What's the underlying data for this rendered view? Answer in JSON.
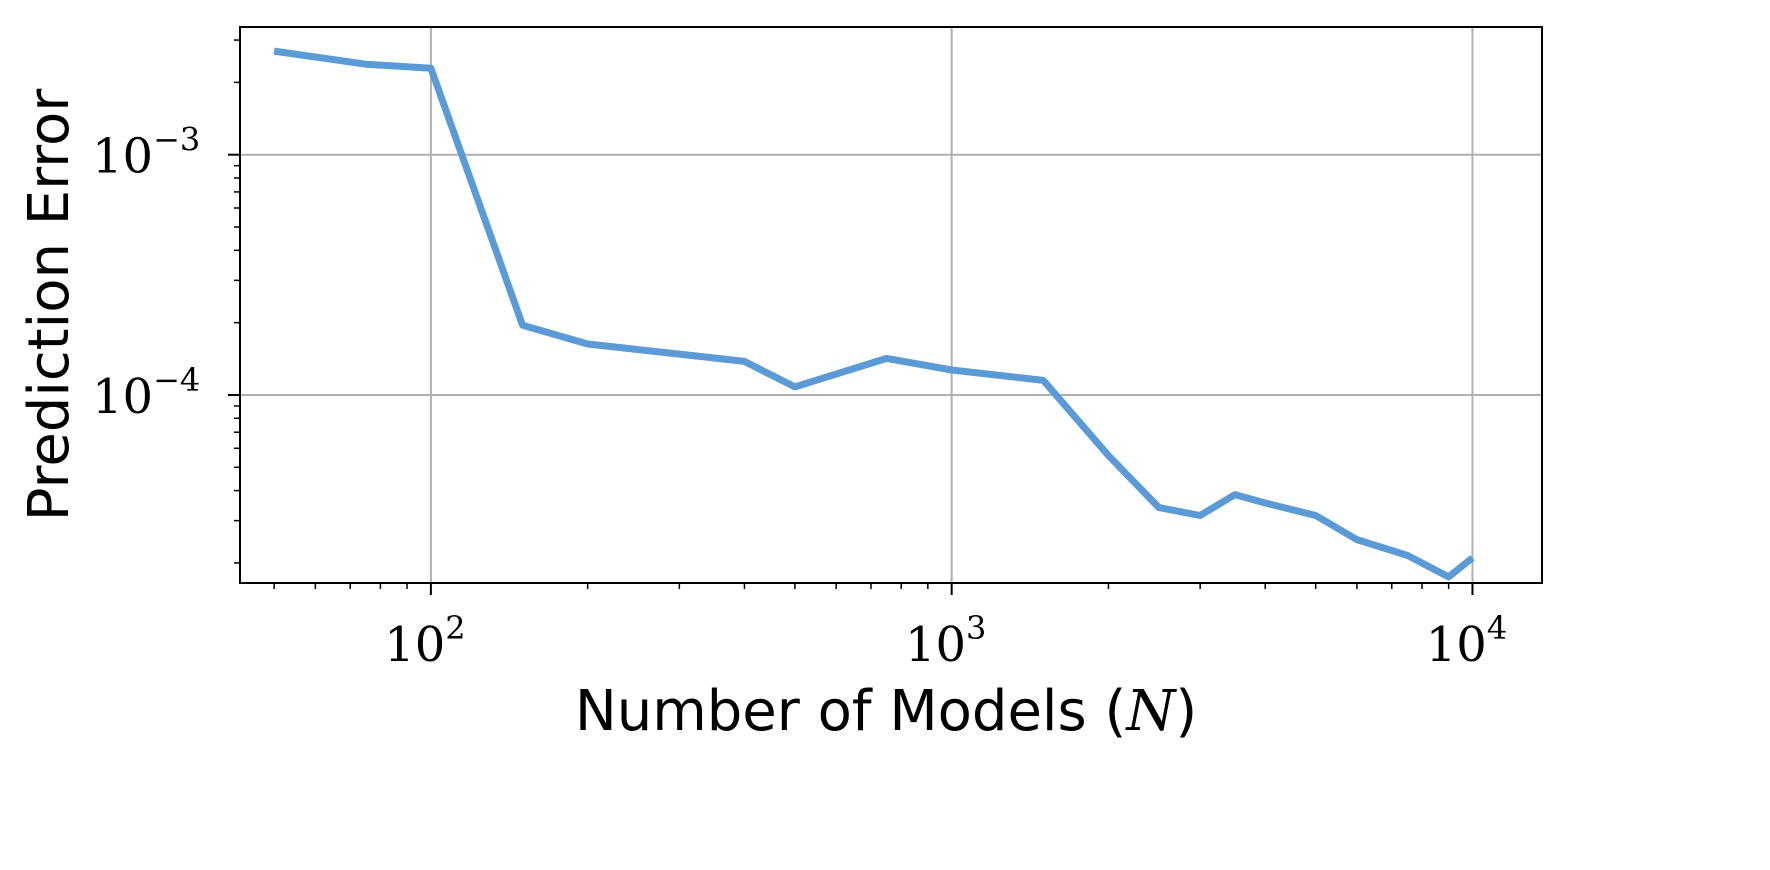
{
  "chart_data": {
    "type": "line",
    "xlabel": "Number of Models (",
    "xlabel_var": "N",
    "xlabel_close": ")",
    "ylabel": "Prediction Error",
    "x_scale": "log",
    "y_scale": "log",
    "xlim": [
      43,
      13600
    ],
    "ylim": [
      1.65e-05,
      0.0034
    ],
    "grid": true,
    "line_color": "#5b9bd5",
    "x_ticks": [
      {
        "base": "10",
        "exp": "2",
        "value": 100
      },
      {
        "base": "10",
        "exp": "3",
        "value": 1000
      },
      {
        "base": "10",
        "exp": "4",
        "value": 10000
      }
    ],
    "y_ticks": [
      {
        "base": "10",
        "exp": "−4",
        "value": 0.0001
      },
      {
        "base": "10",
        "exp": "−3",
        "value": 0.001
      }
    ],
    "series": [
      {
        "x": [
          50,
          75,
          100,
          150,
          200,
          300,
          400,
          500,
          750,
          1000,
          1500,
          2000,
          2500,
          3000,
          3500,
          4000,
          5000,
          6000,
          7500,
          9000,
          10000
        ],
        "y": [
          0.0027,
          0.00238,
          0.00229,
          0.000195,
          0.000163,
          0.000148,
          0.000138,
          0.000108,
          0.000142,
          0.000127,
          0.000115,
          5.6e-05,
          3.4e-05,
          3.15e-05,
          3.85e-05,
          3.55e-05,
          3.15e-05,
          2.5e-05,
          2.15e-05,
          1.75e-05,
          2.1e-05
        ]
      }
    ]
  }
}
